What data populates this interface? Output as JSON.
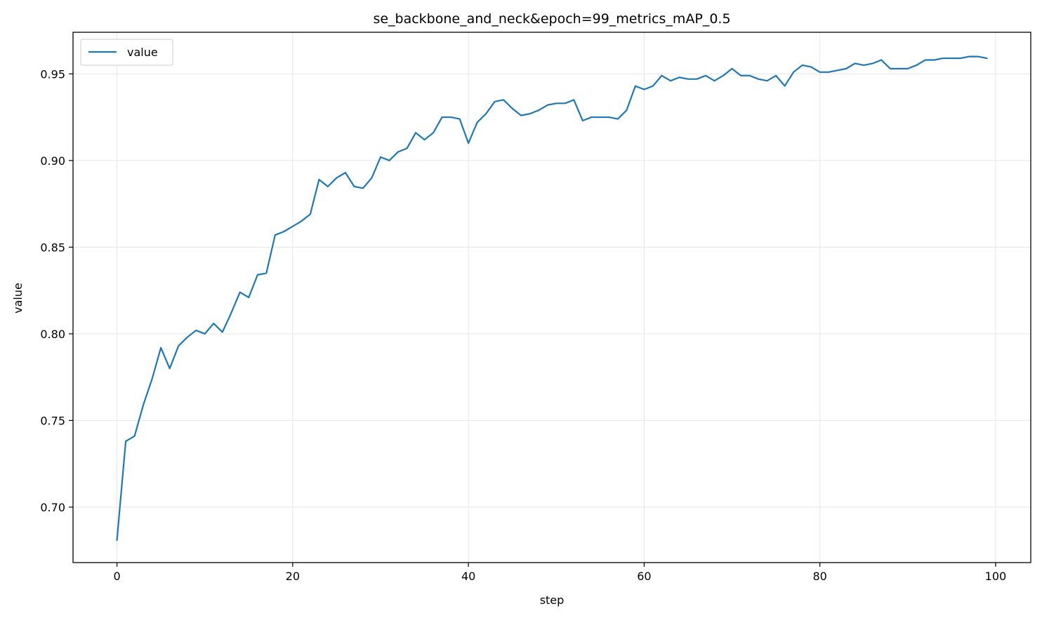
{
  "chart_data": {
    "type": "line",
    "title": "se_backbone_and_neck&epoch=99_metrics_mAP_0.5",
    "xlabel": "step",
    "ylabel": "value",
    "xlim": [
      -5,
      104
    ],
    "ylim": [
      0.668,
      0.974
    ],
    "xticks": [
      0,
      20,
      40,
      60,
      80,
      100
    ],
    "yticks": [
      0.7,
      0.75,
      0.8,
      0.85,
      0.9,
      0.95
    ],
    "grid": true,
    "legend_position": "top-left",
    "series": [
      {
        "name": "value",
        "color": "#1f77b4",
        "x": [
          0,
          1,
          2,
          3,
          4,
          5,
          6,
          7,
          8,
          9,
          10,
          11,
          12,
          13,
          14,
          15,
          16,
          17,
          18,
          19,
          20,
          21,
          22,
          23,
          24,
          25,
          26,
          27,
          28,
          29,
          30,
          31,
          32,
          33,
          34,
          35,
          36,
          37,
          38,
          39,
          40,
          41,
          42,
          43,
          44,
          45,
          46,
          47,
          48,
          49,
          50,
          51,
          52,
          53,
          54,
          55,
          56,
          57,
          58,
          59,
          60,
          61,
          62,
          63,
          64,
          65,
          66,
          67,
          68,
          69,
          70,
          71,
          72,
          73,
          74,
          75,
          76,
          77,
          78,
          79,
          80,
          81,
          82,
          83,
          84,
          85,
          86,
          87,
          88,
          89,
          90,
          91,
          92,
          93,
          94,
          95,
          96,
          97,
          98,
          99
        ],
        "values": [
          0.681,
          0.738,
          0.741,
          0.759,
          0.774,
          0.792,
          0.78,
          0.793,
          0.798,
          0.802,
          0.8,
          0.806,
          0.801,
          0.812,
          0.824,
          0.821,
          0.834,
          0.835,
          0.857,
          0.859,
          0.862,
          0.865,
          0.869,
          0.889,
          0.885,
          0.89,
          0.893,
          0.885,
          0.884,
          0.89,
          0.902,
          0.9,
          0.905,
          0.907,
          0.916,
          0.912,
          0.916,
          0.925,
          0.925,
          0.924,
          0.91,
          0.922,
          0.927,
          0.934,
          0.935,
          0.93,
          0.926,
          0.927,
          0.929,
          0.932,
          0.933,
          0.933,
          0.935,
          0.923,
          0.925,
          0.925,
          0.925,
          0.924,
          0.929,
          0.943,
          0.941,
          0.943,
          0.949,
          0.946,
          0.948,
          0.947,
          0.947,
          0.949,
          0.946,
          0.949,
          0.953,
          0.949,
          0.949,
          0.947,
          0.946,
          0.949,
          0.943,
          0.951,
          0.955,
          0.954,
          0.951,
          0.951,
          0.952,
          0.953,
          0.956,
          0.955,
          0.956,
          0.958,
          0.953,
          0.953,
          0.953,
          0.955,
          0.958,
          0.958,
          0.959,
          0.959,
          0.959,
          0.96,
          0.96,
          0.959
        ]
      }
    ]
  }
}
